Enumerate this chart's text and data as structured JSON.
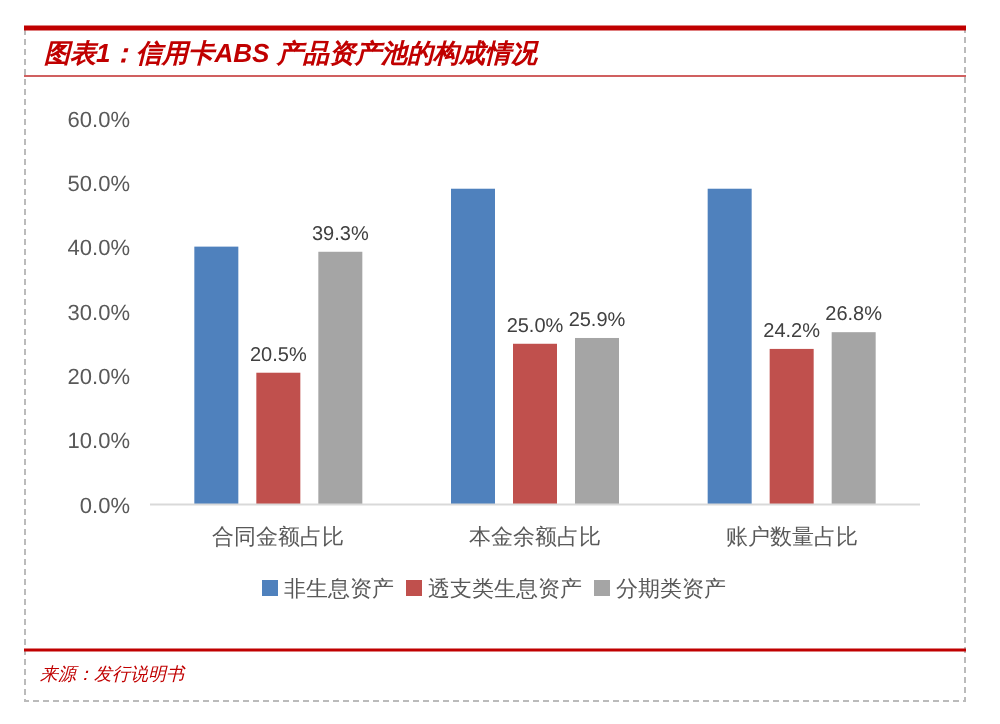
{
  "chart_data": {
    "type": "bar",
    "title": "图表1：信用卡ABS 产品资产池的构成情况",
    "categories": [
      "合同金额占比",
      "本金余额占比",
      "账户数量占比"
    ],
    "series": [
      {
        "name": "非生息资产",
        "color": "#4f81bd",
        "values": [
          40.1,
          49.1,
          49.1
        ],
        "value_labels": [
          null,
          null,
          null
        ]
      },
      {
        "name": "透支类生息资产",
        "color": "#c0504d",
        "values": [
          20.5,
          25.0,
          24.2
        ],
        "value_labels": [
          "20.5%",
          "25.0%",
          "24.2%"
        ]
      },
      {
        "name": "分期类资产",
        "color": "#a5a5a5",
        "values": [
          39.3,
          25.9,
          26.8
        ],
        "value_labels": [
          "39.3%",
          "25.9%",
          "26.8%"
        ]
      }
    ],
    "ylim": [
      0,
      60
    ],
    "yticks": [
      {
        "value": 0,
        "label": "0.0%"
      },
      {
        "value": 10,
        "label": "10.0%"
      },
      {
        "value": 20,
        "label": "20.0%"
      },
      {
        "value": 30,
        "label": "30.0%"
      },
      {
        "value": 40,
        "label": "40.0%"
      },
      {
        "value": 50,
        "label": "50.0%"
      },
      {
        "value": 60,
        "label": "60.0%"
      }
    ],
    "grid": false,
    "legend": "bottom",
    "annotations": [
      "来源：发行说明书"
    ]
  }
}
